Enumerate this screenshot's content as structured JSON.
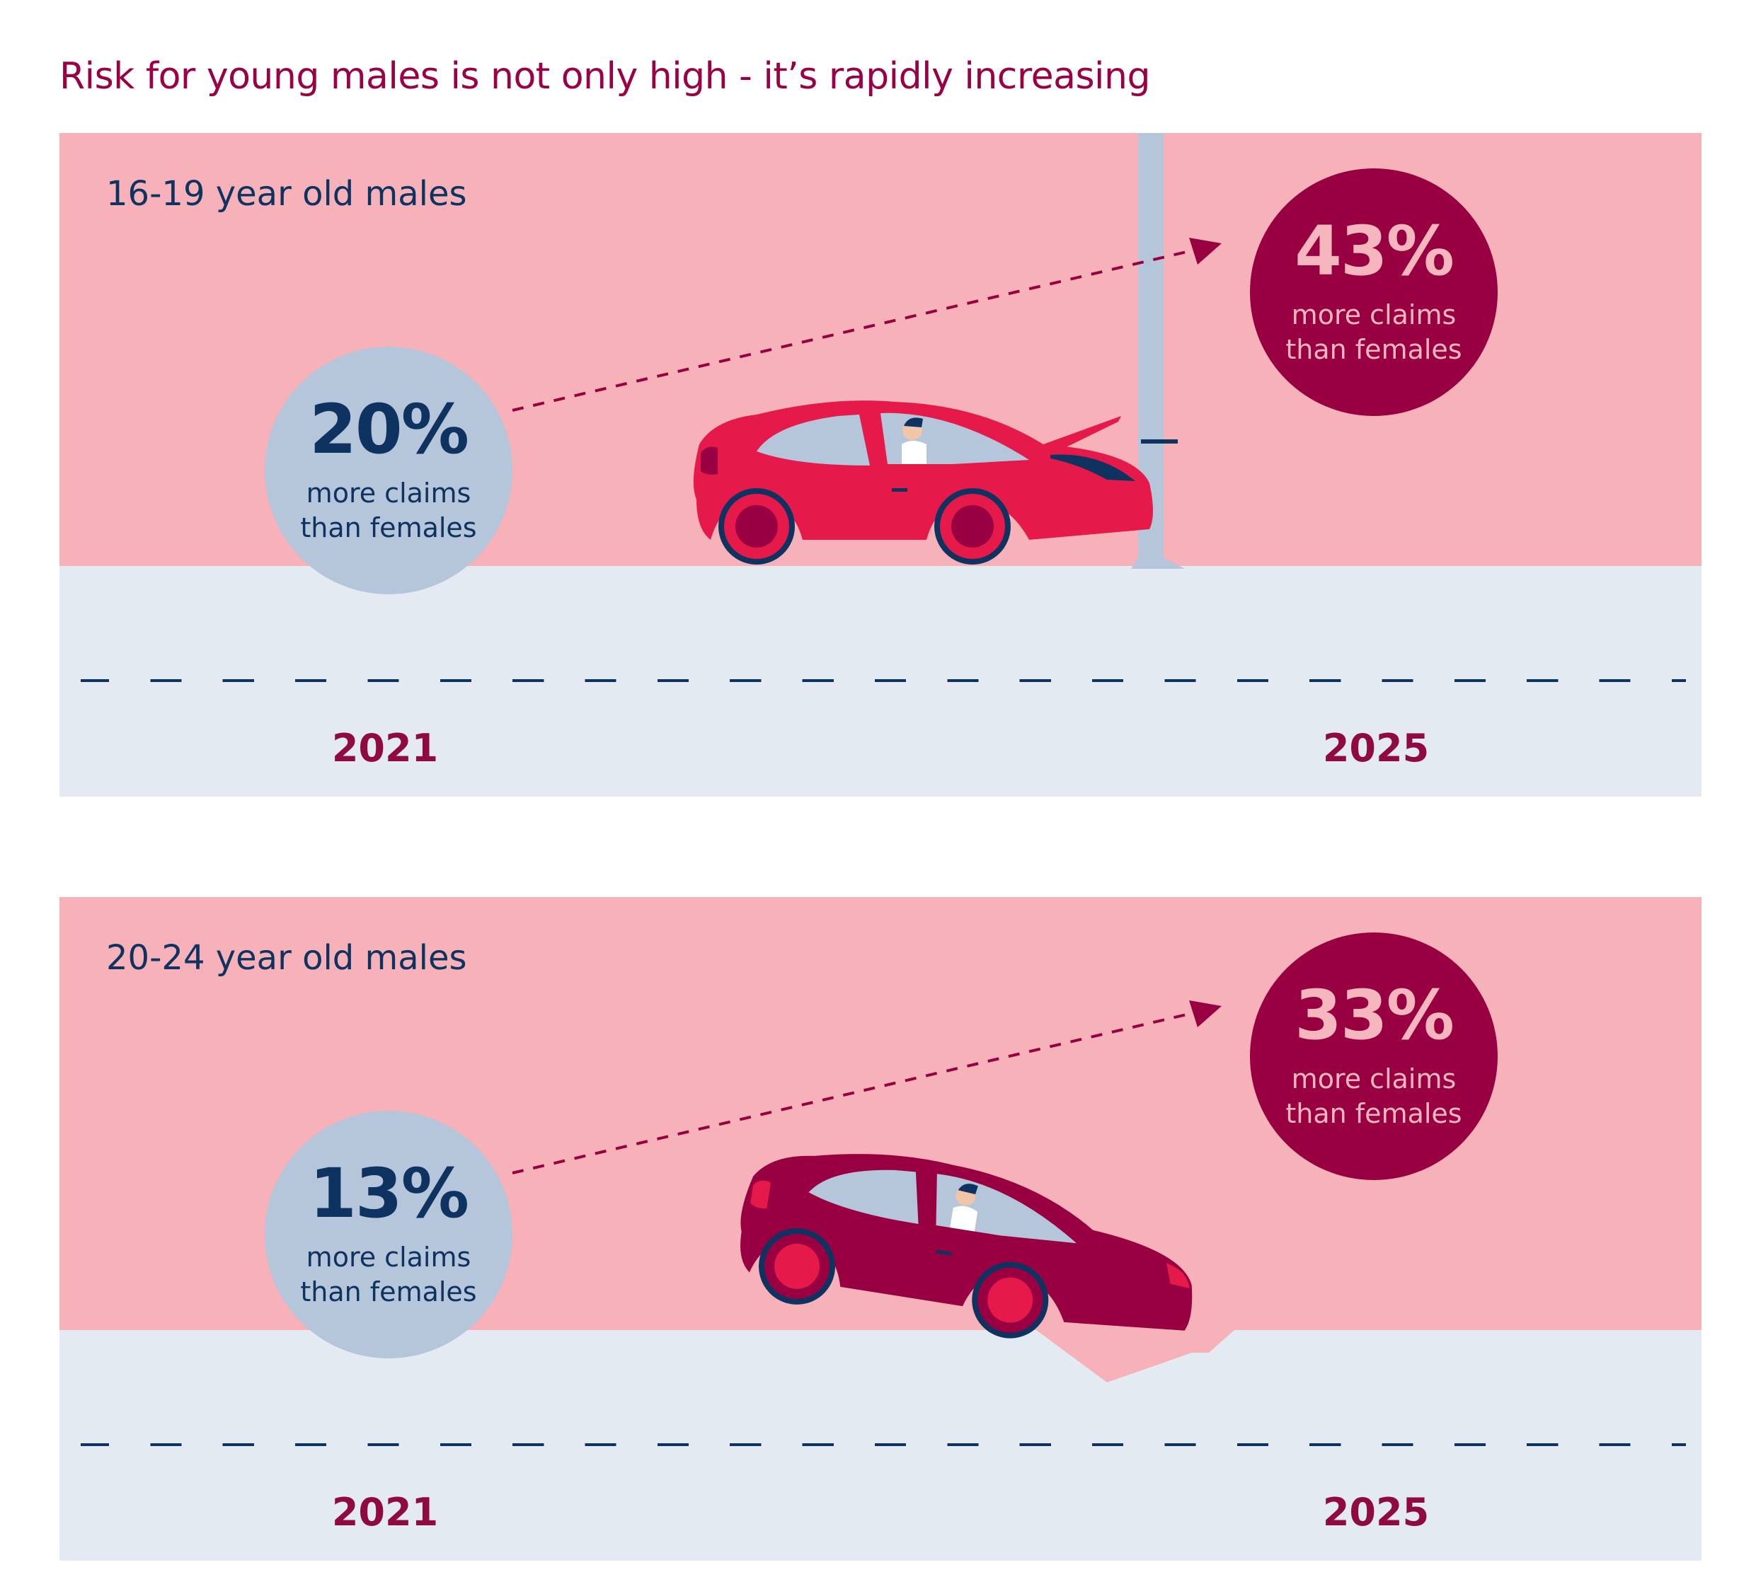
{
  "title": "Risk for young males is not only high - it’s rapidly increasing",
  "panels": [
    {
      "label": "16-19 year old males",
      "start": {
        "pct": "20%",
        "line1": "more claims",
        "line2": "than females",
        "year": "2021"
      },
      "end": {
        "pct": "43%",
        "line1": "more claims",
        "line2": "than females",
        "year": "2025"
      }
    },
    {
      "label": "20-24 year old males",
      "start": {
        "pct": "13%",
        "line1": "more claims",
        "line2": "than females",
        "year": "2021"
      },
      "end": {
        "pct": "33%",
        "line1": "more claims",
        "line2": "than females",
        "year": "2025"
      }
    }
  ],
  "colors": {
    "sky": "#f7b1b8",
    "road": "#e4eaf2",
    "navy": "#0e3360",
    "maroon": "#990041",
    "red_car": "#e5194a",
    "pole": "#b5c5da"
  }
}
